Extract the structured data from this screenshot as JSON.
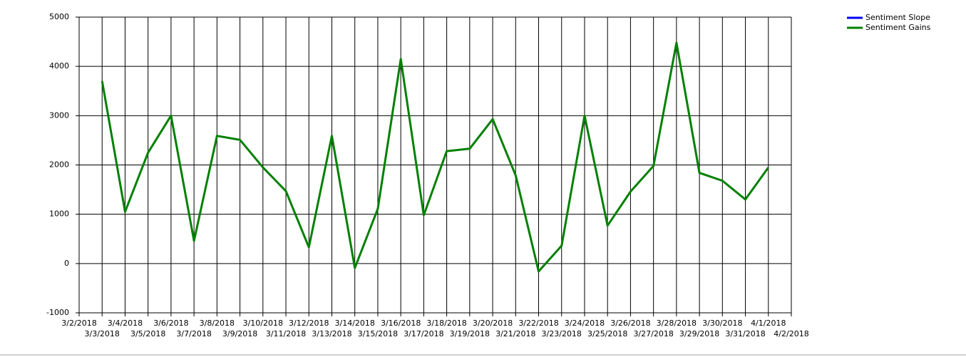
{
  "chart_data": {
    "type": "line",
    "categories": [
      "3/2/2018",
      "3/3/2018",
      "3/4/2018",
      "3/5/2018",
      "3/6/2018",
      "3/7/2018",
      "3/8/2018",
      "3/9/2018",
      "3/10/2018",
      "3/11/2018",
      "3/12/2018",
      "3/13/2018",
      "3/14/2018",
      "3/15/2018",
      "3/16/2018",
      "3/17/2018",
      "3/18/2018",
      "3/19/2018",
      "3/20/2018",
      "3/21/2018",
      "3/22/2018",
      "3/23/2018",
      "3/24/2018",
      "3/25/2018",
      "3/26/2018",
      "3/27/2018",
      "3/28/2018",
      "3/29/2018",
      "3/30/2018",
      "3/31/2018",
      "4/1/2018",
      "4/2/2018"
    ],
    "series": [
      {
        "name": "Sentiment Slope",
        "color": "#0000ff",
        "values": [
          null,
          null,
          null,
          null,
          null,
          null,
          null,
          null,
          null,
          null,
          null,
          null,
          null,
          null,
          null,
          null,
          null,
          null,
          null,
          null,
          null,
          null,
          null,
          null,
          null,
          null,
          null,
          null,
          null,
          null,
          null,
          null
        ]
      },
      {
        "name": "Sentiment Gains",
        "color": "#008000",
        "values": [
          null,
          3700,
          1050,
          2250,
          3000,
          460,
          2590,
          2510,
          1950,
          1470,
          330,
          2590,
          -90,
          1110,
          4150,
          980,
          2280,
          2330,
          2930,
          1790,
          -160,
          360,
          3000,
          770,
          1460,
          1980,
          4480,
          1840,
          1680,
          1300,
          1950,
          null
        ]
      }
    ],
    "ylim": [
      -1000,
      5000
    ],
    "yticks": [
      -1000,
      0,
      1000,
      2000,
      3000,
      4000,
      5000
    ],
    "grid": true
  }
}
